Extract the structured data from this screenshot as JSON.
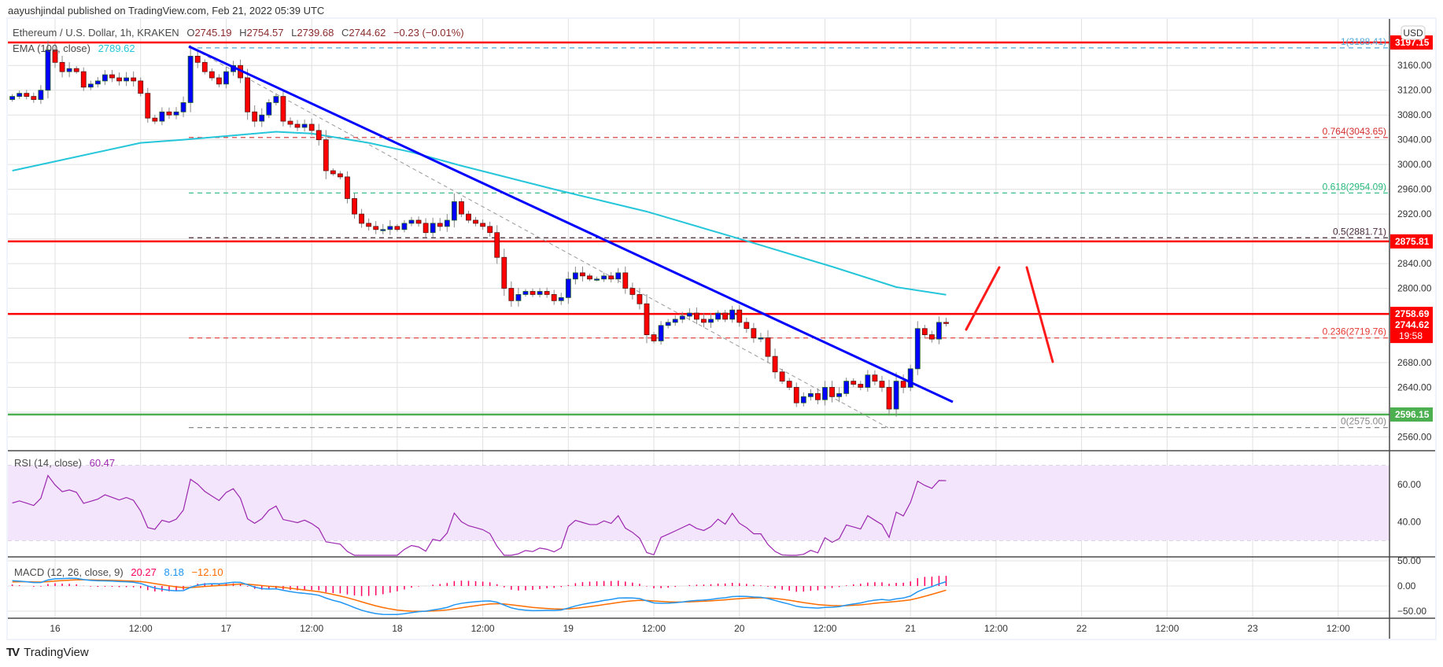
{
  "published": "aayushjindal published on TradingView.com, Feb 21, 2022 05:39 UTC",
  "legend": {
    "symbol": "Ethereum / U.S. Dollar, 1h, KRAKEN",
    "open_label": "O",
    "open": "2745.19",
    "high_label": "H",
    "high": "2754.57",
    "low_label": "L",
    "low": "2739.68",
    "close_label": "C",
    "close": "2744.62",
    "change": "−0.23 (−0.01%)",
    "ema_label": "EMA (100, close)",
    "ema_value": "2789.62",
    "rsi_label": "RSI (14, close)",
    "rsi_value": "60.47",
    "macd_label": "MACD (12, 26, close, 9)",
    "macd_hist": "20.27",
    "macd_value": "8.18",
    "macd_signal": "−12.10"
  },
  "footer": {
    "logo": "TV",
    "brand": "TradingView"
  },
  "colors": {
    "up": "#0000ff",
    "down": "#ff0000",
    "ema": "#26c6da",
    "rsi": "#9c27b0",
    "rsi_band": "#f3e5fc",
    "macd": "#2196f3",
    "signal": "#ff6d00",
    "hist": "#ff0060",
    "support": "#4caf50",
    "resistance": "#ff0000",
    "trend": "#0000ff"
  },
  "chart_data": {
    "type": "candlestick",
    "title": "Ethereum / U.S. Dollar, 1h, KRAKEN",
    "x_start": "Feb 15 18:00",
    "x_step_hours": 1,
    "start_hour": -6,
    "closes": [
      3110,
      3115,
      3110,
      3105,
      3120,
      3185,
      3165,
      3150,
      3155,
      3150,
      3125,
      3130,
      3135,
      3145,
      3140,
      3135,
      3140,
      3135,
      3115,
      3075,
      3070,
      3085,
      3080,
      3085,
      3100,
      3175,
      3165,
      3150,
      3140,
      3130,
      3150,
      3160,
      3140,
      3085,
      3070,
      3080,
      3100,
      3110,
      3070,
      3065,
      3060,
      3065,
      3055,
      3040,
      2990,
      2985,
      2980,
      2945,
      2920,
      2905,
      2900,
      2895,
      2895,
      2900,
      2895,
      2905,
      2910,
      2905,
      2890,
      2905,
      2900,
      2910,
      2940,
      2920,
      2910,
      2905,
      2900,
      2890,
      2850,
      2800,
      2780,
      2790,
      2795,
      2790,
      2795,
      2790,
      2780,
      2785,
      2815,
      2825,
      2820,
      2815,
      2815,
      2820,
      2815,
      2825,
      2800,
      2790,
      2775,
      2725,
      2715,
      2740,
      2745,
      2750,
      2755,
      2760,
      2750,
      2745,
      2750,
      2760,
      2750,
      2765,
      2745,
      2735,
      2720,
      2720,
      2690,
      2665,
      2650,
      2640,
      2615,
      2625,
      2630,
      2620,
      2640,
      2625,
      2630,
      2650,
      2645,
      2640,
      2660,
      2650,
      2640,
      2605,
      2650,
      2640,
      2670,
      2735,
      2725,
      2718,
      2745,
      2744.62
    ],
    "ema100_points": [
      [
        -6,
        2990
      ],
      [
        0,
        3005
      ],
      [
        12,
        3035
      ],
      [
        18,
        3040
      ],
      [
        31,
        3053
      ],
      [
        36,
        3050
      ],
      [
        44,
        3035
      ],
      [
        50,
        3020
      ],
      [
        57,
        2998
      ],
      [
        70,
        2960
      ],
      [
        83,
        2924
      ],
      [
        96,
        2880
      ],
      [
        109,
        2835
      ],
      [
        118,
        2802
      ],
      [
        125,
        2789.62
      ]
    ],
    "x_ticks": [
      "16",
      "12:00",
      "17",
      "12:00",
      "18",
      "12:00",
      "19",
      "12:00",
      "20",
      "12:00",
      "21",
      "12:00",
      "22",
      "12:00",
      "23",
      "12:00"
    ],
    "y_ticks": [
      "3160.00",
      "3120.00",
      "3080.00",
      "3040.00",
      "3000.00",
      "2960.00",
      "2920.00",
      "2840.00",
      "2800.00",
      "2680.00",
      "2640.00",
      "2560.00"
    ],
    "y_range": [
      2540,
      3210
    ],
    "currency": "USD",
    "horizontal_levels": [
      {
        "price": 3197.15,
        "label": "3197.15",
        "color": "#ff0000"
      },
      {
        "price": 2875.81,
        "label": "2875.81",
        "color": "#ff0000"
      },
      {
        "price": 2758.69,
        "label": "2758.69",
        "color": "#ff0000"
      },
      {
        "price": 2596.15,
        "label": "2596.15",
        "color": "#4caf50"
      }
    ],
    "last_price": {
      "price": 2744.62,
      "label": "2744.62",
      "countdown": "19:58"
    },
    "fib_levels": [
      {
        "price": 3188.41,
        "label": "1(3188.41)",
        "color": "#4fa8d8"
      },
      {
        "price": 3043.65,
        "label": "0.764(3043.65)",
        "color": "#d32f2f"
      },
      {
        "price": 2954.09,
        "label": "0.618(2954.09)",
        "color": "#26b87a"
      },
      {
        "price": 2881.71,
        "label": "0.5(2881.71)",
        "color": "#4a2a3a"
      },
      {
        "price": 2719.76,
        "label": "0.236(2719.76)",
        "color": "#e53935"
      },
      {
        "price": 2575.0,
        "label": "0(2575.00)",
        "color": "#888888"
      }
    ],
    "rsi": {
      "period": 14,
      "last": 60.47,
      "band": [
        30,
        70
      ],
      "ticks": [
        "60.00",
        "40.00"
      ]
    },
    "macd": {
      "fast": 12,
      "slow": 26,
      "signal": 9,
      "hist": 20.27,
      "macd": 8.18,
      "signal_value": -12.1,
      "ticks": [
        "50.00",
        "0.00",
        "−50.00"
      ]
    }
  }
}
